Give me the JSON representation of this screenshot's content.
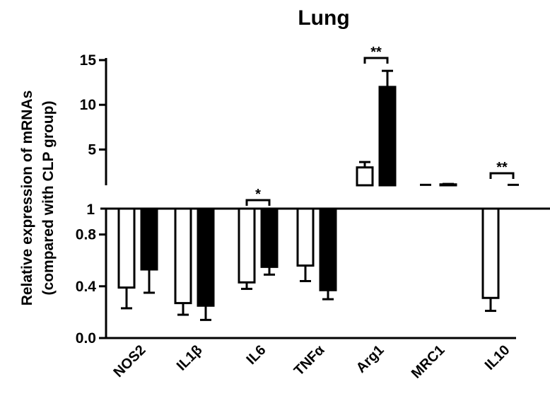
{
  "chart_data": {
    "type": "bar",
    "title": "Lung",
    "ylabel_line1": "Relative expression of mRNAs",
    "ylabel_line2": "(compared with CLP group)",
    "categories": [
      "NOS2",
      "IL1β",
      "IL6",
      "TNFα",
      "Arg1",
      "MRC1",
      "IL10"
    ],
    "series": [
      {
        "fill": "#ffffff",
        "values": [
          0.39,
          0.27,
          0.43,
          0.56,
          3.0,
          1.0,
          0.31
        ],
        "errors": [
          0.16,
          0.09,
          0.05,
          0.12,
          0.6,
          0.05,
          0.1
        ]
      },
      {
        "fill": "#000000",
        "values": [
          0.53,
          0.25,
          0.55,
          0.37,
          12.0,
          1.1,
          1.0
        ],
        "errors": [
          0.18,
          0.11,
          0.06,
          0.07,
          1.8,
          0.05,
          0.05
        ]
      }
    ],
    "lower_axis": {
      "ylim": [
        0,
        1
      ],
      "ticks": [
        "0.0",
        "0.4",
        "0.8"
      ]
    },
    "upper_axis": {
      "ylim": [
        1,
        15
      ],
      "ticks": [
        "5",
        "10",
        "15"
      ]
    },
    "break_label": "1",
    "significance": [
      {
        "category": "IL6",
        "label": "*"
      },
      {
        "category": "Arg1",
        "label": "**"
      },
      {
        "category": "IL10",
        "label": "**"
      }
    ],
    "grid": false,
    "legend": "none"
  }
}
